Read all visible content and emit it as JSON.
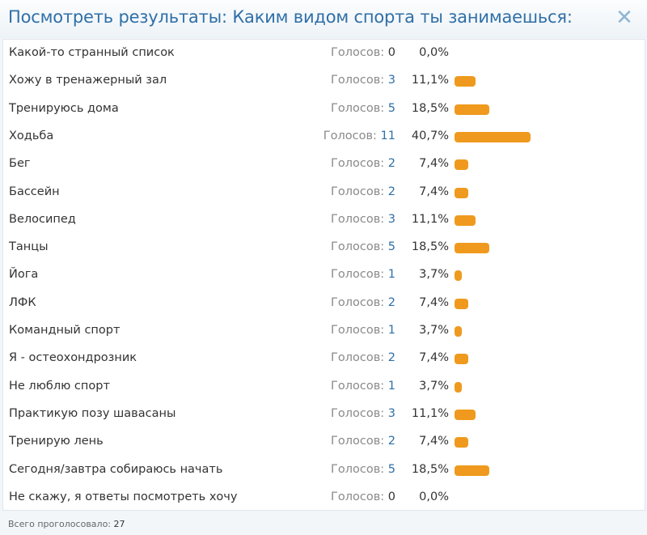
{
  "dialog": {
    "title": "Посмотреть результаты: Каким видом спорта ты занимаешься:",
    "close_icon": "close-icon",
    "close_glyph": "✕",
    "accent_color": "#2f6fa7",
    "bar_color": "#ef9a1e"
  },
  "poll": {
    "votes_label": "Голосов:",
    "options": [
      {
        "label": "Какой-то странный список",
        "votes": "0",
        "percent": "0,0%",
        "share": 0.0
      },
      {
        "label": "Хожу в тренажерный зал",
        "votes": "3",
        "percent": "11,1%",
        "share": 11.1
      },
      {
        "label": "Тренируюсь дома",
        "votes": "5",
        "percent": "18,5%",
        "share": 18.5
      },
      {
        "label": "Ходьба",
        "votes": "11",
        "percent": "40,7%",
        "share": 40.7
      },
      {
        "label": "Бег",
        "votes": "2",
        "percent": "7,4%",
        "share": 7.4
      },
      {
        "label": "Бассейн",
        "votes": "2",
        "percent": "7,4%",
        "share": 7.4
      },
      {
        "label": "Велосипед",
        "votes": "3",
        "percent": "11,1%",
        "share": 11.1
      },
      {
        "label": "Танцы",
        "votes": "5",
        "percent": "18,5%",
        "share": 18.5
      },
      {
        "label": "Йога",
        "votes": "1",
        "percent": "3,7%",
        "share": 3.7
      },
      {
        "label": "ЛФК",
        "votes": "2",
        "percent": "7,4%",
        "share": 7.4
      },
      {
        "label": "Командный спорт",
        "votes": "1",
        "percent": "3,7%",
        "share": 3.7
      },
      {
        "label": "Я - остеохондрозник",
        "votes": "2",
        "percent": "7,4%",
        "share": 7.4
      },
      {
        "label": "Не люблю спорт",
        "votes": "1",
        "percent": "3,7%",
        "share": 3.7
      },
      {
        "label": "Практикую позу шавасаны",
        "votes": "3",
        "percent": "11,1%",
        "share": 11.1
      },
      {
        "label": "Тренирую лень",
        "votes": "2",
        "percent": "7,4%",
        "share": 7.4
      },
      {
        "label": "Сегодня/завтра собираюсь начать",
        "votes": "5",
        "percent": "18,5%",
        "share": 18.5
      },
      {
        "label": "Не скажу, я ответы посмотреть хочу",
        "votes": "0",
        "percent": "0,0%",
        "share": 0.0
      }
    ]
  },
  "footer": {
    "total_label": "Всего проголосовало:",
    "total_value": "27"
  }
}
